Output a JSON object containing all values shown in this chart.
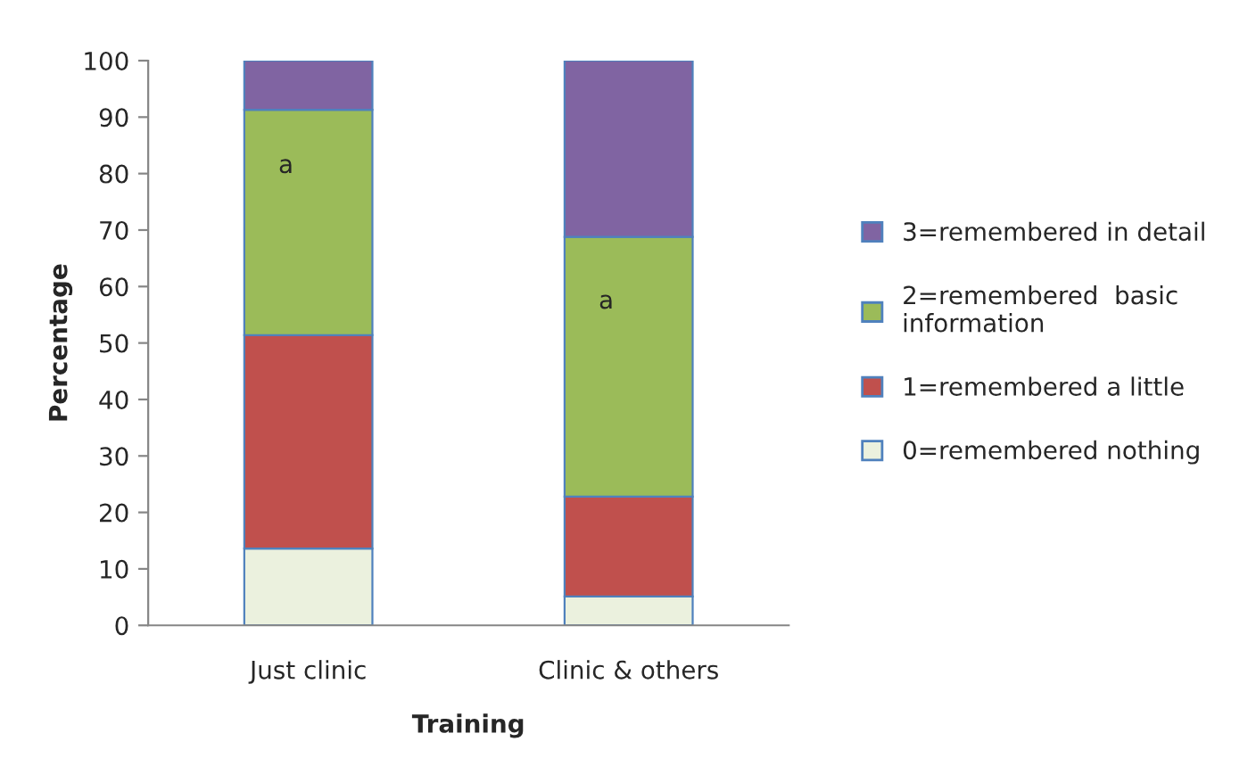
{
  "chart_data": {
    "type": "bar",
    "stacked": true,
    "xlabel": "Training",
    "ylabel": "Percentage",
    "categories": [
      "Just clinic",
      "Clinic & others"
    ],
    "series": [
      {
        "name": "0=remembered nothing",
        "color": "#ebf1de",
        "values": [
          13.6,
          5.1
        ]
      },
      {
        "name": "1=remembered a little",
        "color": "#c0504d",
        "values": [
          37.8,
          17.7
        ]
      },
      {
        "name": "2=remembered  basic\ninformation",
        "color": "#9bbb59",
        "values": [
          39.9,
          46.0
        ]
      },
      {
        "name": "3=remembered in detail",
        "color": "#8064a2",
        "values": [
          8.7,
          31.2
        ]
      }
    ],
    "ylim": [
      0,
      100
    ],
    "yticks": [
      0,
      10,
      20,
      30,
      40,
      50,
      60,
      70,
      80,
      90,
      100
    ],
    "grid": false,
    "legend": "right",
    "annotations": [
      "a",
      "a"
    ]
  }
}
